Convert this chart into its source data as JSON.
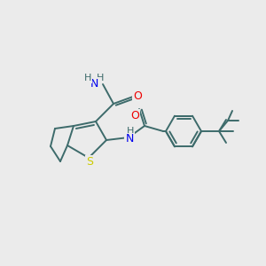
{
  "background_color": "#ebebeb",
  "bond_color": "#3d6b6b",
  "atom_colors": {
    "N": "#0000ee",
    "O": "#ee0000",
    "S": "#cccc00",
    "H": "#3d6b6b",
    "C": "#3d6b6b"
  },
  "lw": 1.4
}
